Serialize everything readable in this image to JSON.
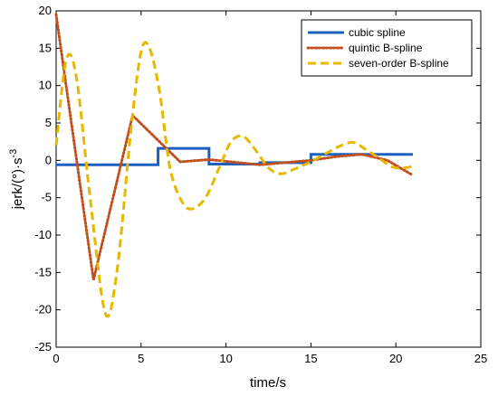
{
  "chart_data": {
    "type": "line",
    "xlabel": "time/s",
    "ylabel_main": "jerk/(°)·s",
    "ylabel_sup": "-3",
    "xlim": [
      0,
      25
    ],
    "ylim": [
      -25,
      20
    ],
    "xticks": [
      "0",
      "5",
      "10",
      "15",
      "20",
      "25"
    ],
    "yticks": [
      "-25",
      "-20",
      "-15",
      "-10",
      "-5",
      "0",
      "5",
      "10",
      "15",
      "20"
    ],
    "grid": false,
    "legend_position": "top-right",
    "series": [
      {
        "name": "cubic spline",
        "style": "solid",
        "color": "#1f5fbf",
        "x": [
          0,
          6,
          6,
          9,
          9,
          12,
          12,
          15,
          15,
          21
        ],
        "y": [
          -0.6,
          -0.6,
          1.6,
          1.6,
          -0.5,
          -0.5,
          -0.3,
          -0.3,
          0.8,
          0.8
        ]
      },
      {
        "name": "quintic B-spline",
        "style": "dotted",
        "color": "#c0501e",
        "x": [
          0,
          2.2,
          4.5,
          7.3,
          9,
          12,
          15,
          16.5,
          18,
          19.5,
          21
        ],
        "y": [
          19.5,
          -16.0,
          6.0,
          -0.2,
          0.1,
          -0.6,
          0.0,
          0.5,
          0.8,
          0.0,
          -2.0
        ]
      },
      {
        "name": "seven-order B-spline",
        "style": "dashed",
        "color": "#e6b800",
        "x": [
          0,
          0.6,
          1.2,
          2.0,
          2.9,
          3.6,
          4.4,
          5.0,
          5.5,
          6.1,
          6.7,
          7.4,
          8.0,
          8.8,
          9.6,
          10.3,
          11.0,
          11.7,
          12.5,
          13.2,
          14.0,
          14.7,
          15.4,
          16.1,
          16.8,
          17.5,
          18.2,
          19.0,
          19.8,
          20.5,
          21.0
        ],
        "y": [
          2.0,
          13.5,
          11.0,
          -5.0,
          -20.5,
          -14.5,
          4.0,
          14.5,
          15.0,
          9.0,
          -1.0,
          -5.5,
          -6.5,
          -5.0,
          -1.0,
          2.5,
          3.2,
          1.5,
          -1.0,
          -1.8,
          -1.2,
          -0.5,
          0.3,
          1.2,
          2.0,
          2.4,
          1.5,
          0.3,
          -0.9,
          -1.0,
          -0.8
        ]
      }
    ]
  }
}
